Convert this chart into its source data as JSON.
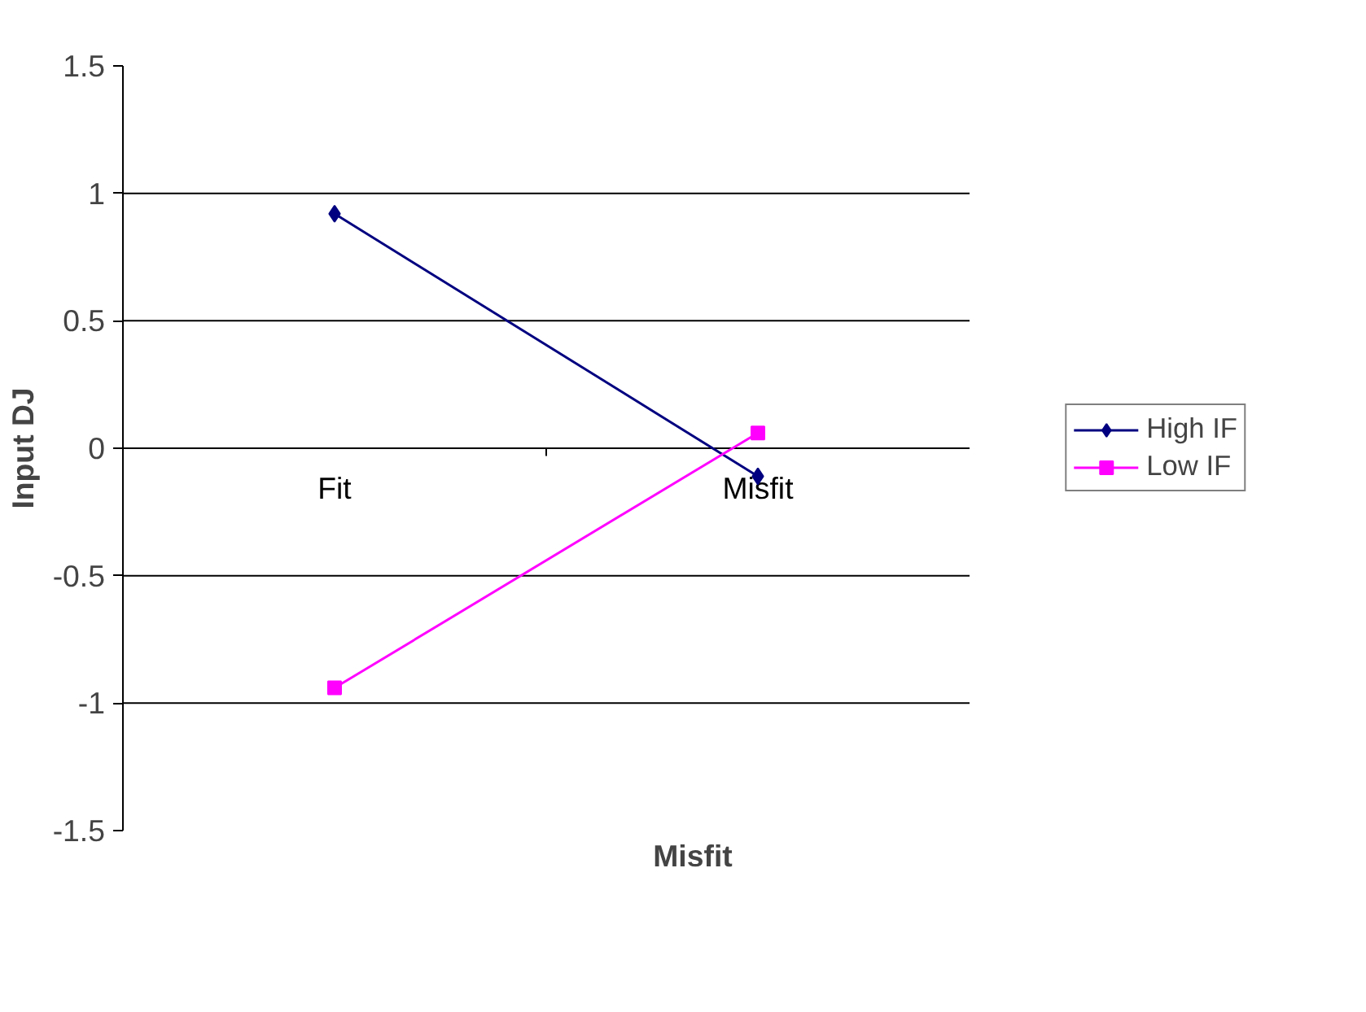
{
  "chart_data": {
    "type": "line",
    "xlabel": "Misfit",
    "ylabel": "Input DJ",
    "categories": [
      "Fit",
      "Misfit"
    ],
    "series": [
      {
        "name": "High IF",
        "color": "#000080",
        "marker": "diamond",
        "values": [
          0.92,
          -0.11
        ]
      },
      {
        "name": "Low IF",
        "color": "#ff00ff",
        "marker": "square",
        "values": [
          -0.94,
          0.06
        ]
      }
    ],
    "ylim": [
      -1.5,
      1.5
    ],
    "yticks": [
      -1.5,
      -1,
      -0.5,
      0,
      0.5,
      1,
      1.5
    ],
    "grid": "y",
    "legend": "right",
    "line_style": "solid"
  }
}
